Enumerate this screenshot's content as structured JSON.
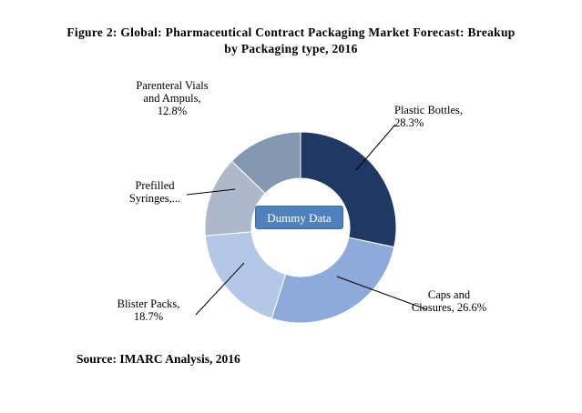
{
  "title": {
    "line1": "Figure 2: Global: Pharmaceutical Contract Packaging Market Forecast: Breakup",
    "line2": "by Packaging type, 2016"
  },
  "chart_data": {
    "type": "pie",
    "donut": true,
    "title": "Figure 2: Global: Pharmaceutical Contract Packaging Market Forecast: Breakup by Packaging type, 2016",
    "slices": [
      {
        "name": "Plastic Bottles",
        "value": 28.3,
        "label_lines": [
          "Plastic Bottles,",
          "28.3%"
        ],
        "color": "#1f3864"
      },
      {
        "name": "Caps and Closures",
        "value": 26.6,
        "label_lines": [
          "Caps and",
          "Closures, 26.6%"
        ],
        "color": "#8eaadb"
      },
      {
        "name": "Blister Packs",
        "value": 18.7,
        "label_lines": [
          "Blister Packs,",
          "18.7%"
        ],
        "color": "#b4c7e7"
      },
      {
        "name": "Prefilled Syringes",
        "value": 13.6,
        "label_lines": [
          "Prefilled",
          "Syringes,..."
        ],
        "color": "#adb9ca"
      },
      {
        "name": "Parenteral Vials and Ampuls",
        "value": 12.8,
        "label_lines": [
          "Parenteral Vials",
          "and Ampuls,",
          "12.8%"
        ],
        "color": "#8497b0"
      }
    ]
  },
  "watermark": "Dummy Data",
  "source": "Source: IMARC Analysis, 2016"
}
